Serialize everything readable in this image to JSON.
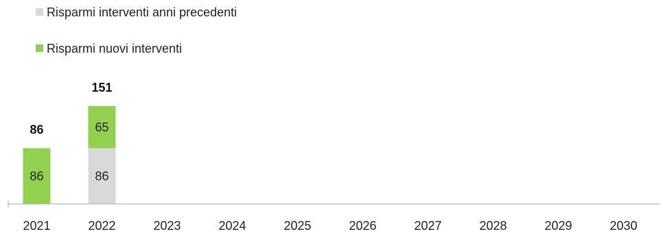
{
  "chart_data": {
    "type": "bar",
    "stacked": true,
    "categories": [
      "2021",
      "2022",
      "2023",
      "2024",
      "2025",
      "2026",
      "2027",
      "2028",
      "2029",
      "2030"
    ],
    "series": [
      {
        "name": "Risparmi interventi anni precedenti",
        "color": "#d9d9d9",
        "values": [
          0,
          86,
          null,
          null,
          null,
          null,
          null,
          null,
          null,
          null
        ]
      },
      {
        "name": "Risparmi nuovi interventi",
        "color": "#92d050",
        "values": [
          86,
          65,
          null,
          null,
          null,
          null,
          null,
          null,
          null,
          null
        ]
      }
    ],
    "totals": [
      86,
      151,
      null,
      null,
      null,
      null,
      null,
      null,
      null,
      null
    ],
    "ylim": [
      0,
      151
    ],
    "grid": false,
    "legend_position": "top-left"
  }
}
